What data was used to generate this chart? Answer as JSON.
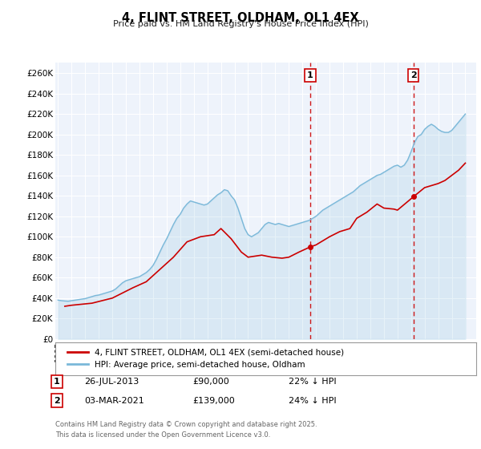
{
  "title": "4, FLINT STREET, OLDHAM, OL1 4EX",
  "subtitle": "Price paid vs. HM Land Registry's House Price Index (HPI)",
  "xlim_start": 1994.8,
  "xlim_end": 2025.8,
  "ylim": [
    0,
    270000
  ],
  "yticks": [
    0,
    20000,
    40000,
    60000,
    80000,
    100000,
    120000,
    140000,
    160000,
    180000,
    200000,
    220000,
    240000,
    260000
  ],
  "ytick_labels": [
    "£0",
    "£20K",
    "£40K",
    "£60K",
    "£80K",
    "£100K",
    "£120K",
    "£140K",
    "£160K",
    "£180K",
    "£200K",
    "£220K",
    "£240K",
    "£260K"
  ],
  "xticks": [
    1995,
    1996,
    1997,
    1998,
    1999,
    2000,
    2001,
    2002,
    2003,
    2004,
    2005,
    2006,
    2007,
    2008,
    2009,
    2010,
    2011,
    2012,
    2013,
    2014,
    2015,
    2016,
    2017,
    2018,
    2019,
    2020,
    2021,
    2022,
    2023,
    2024,
    2025
  ],
  "hpi_color": "#7ab8d9",
  "price_color": "#cc0000",
  "vline1_x": 2013.57,
  "vline2_x": 2021.17,
  "vline_color": "#cc0000",
  "marker1_x": 2013.57,
  "marker1_y": 90000,
  "marker2_x": 2021.17,
  "marker2_y": 139000,
  "label1": "1",
  "label2": "2",
  "legend_price": "4, FLINT STREET, OLDHAM, OL1 4EX (semi-detached house)",
  "legend_hpi": "HPI: Average price, semi-detached house, Oldham",
  "note1_label": "1",
  "note1_date": "26-JUL-2013",
  "note1_price": "£90,000",
  "note1_hpi": "22% ↓ HPI",
  "note2_label": "2",
  "note2_date": "03-MAR-2021",
  "note2_price": "£139,000",
  "note2_hpi": "24% ↓ HPI",
  "footer": "Contains HM Land Registry data © Crown copyright and database right 2025.\nThis data is licensed under the Open Government Licence v3.0.",
  "hpi_data_years": [
    1995.0,
    1995.25,
    1995.5,
    1995.75,
    1996.0,
    1996.25,
    1996.5,
    1996.75,
    1997.0,
    1997.25,
    1997.5,
    1997.75,
    1998.0,
    1998.25,
    1998.5,
    1998.75,
    1999.0,
    1999.25,
    1999.5,
    1999.75,
    2000.0,
    2000.25,
    2000.5,
    2000.75,
    2001.0,
    2001.25,
    2001.5,
    2001.75,
    2002.0,
    2002.25,
    2002.5,
    2002.75,
    2003.0,
    2003.25,
    2003.5,
    2003.75,
    2004.0,
    2004.25,
    2004.5,
    2004.75,
    2005.0,
    2005.25,
    2005.5,
    2005.75,
    2006.0,
    2006.25,
    2006.5,
    2006.75,
    2007.0,
    2007.25,
    2007.5,
    2007.75,
    2008.0,
    2008.25,
    2008.5,
    2008.75,
    2009.0,
    2009.25,
    2009.5,
    2009.75,
    2010.0,
    2010.25,
    2010.5,
    2010.75,
    2011.0,
    2011.25,
    2011.5,
    2011.75,
    2012.0,
    2012.25,
    2012.5,
    2012.75,
    2013.0,
    2013.25,
    2013.5,
    2013.75,
    2014.0,
    2014.25,
    2014.5,
    2014.75,
    2015.0,
    2015.25,
    2015.5,
    2015.75,
    2016.0,
    2016.25,
    2016.5,
    2016.75,
    2017.0,
    2017.25,
    2017.5,
    2017.75,
    2018.0,
    2018.25,
    2018.5,
    2018.75,
    2019.0,
    2019.25,
    2019.5,
    2019.75,
    2020.0,
    2020.25,
    2020.5,
    2020.75,
    2021.0,
    2021.25,
    2021.5,
    2021.75,
    2022.0,
    2022.25,
    2022.5,
    2022.75,
    2023.0,
    2023.25,
    2023.5,
    2023.75,
    2024.0,
    2024.25,
    2024.5,
    2024.75,
    2025.0
  ],
  "hpi_data_values": [
    38000,
    37500,
    37200,
    37000,
    37500,
    38000,
    38500,
    39000,
    39500,
    40500,
    41500,
    42500,
    43000,
    44000,
    45000,
    46000,
    47000,
    49000,
    52000,
    55000,
    57000,
    58000,
    59000,
    60000,
    61000,
    63000,
    65000,
    68000,
    72000,
    78000,
    85000,
    92000,
    98000,
    105000,
    112000,
    118000,
    122000,
    128000,
    132000,
    135000,
    134000,
    133000,
    132000,
    131000,
    132000,
    135000,
    138000,
    141000,
    143000,
    146000,
    145000,
    140000,
    136000,
    128000,
    118000,
    108000,
    102000,
    100000,
    102000,
    104000,
    108000,
    112000,
    114000,
    113000,
    112000,
    113000,
    112000,
    111000,
    110000,
    111000,
    112000,
    113000,
    114000,
    115000,
    116000,
    118000,
    120000,
    123000,
    126000,
    128000,
    130000,
    132000,
    134000,
    136000,
    138000,
    140000,
    142000,
    144000,
    147000,
    150000,
    152000,
    154000,
    156000,
    158000,
    160000,
    161000,
    163000,
    165000,
    167000,
    169000,
    170000,
    168000,
    170000,
    175000,
    183000,
    192000,
    198000,
    200000,
    205000,
    208000,
    210000,
    208000,
    205000,
    203000,
    202000,
    202000,
    204000,
    208000,
    212000,
    216000,
    220000
  ],
  "price_data_years": [
    1995.5,
    1996.0,
    1997.5,
    1999.0,
    2000.5,
    2001.5,
    2002.5,
    2003.5,
    2004.5,
    2005.5,
    2006.5,
    2007.0,
    2007.75,
    2008.5,
    2009.0,
    2010.0,
    2010.75,
    2011.5,
    2012.0,
    2012.75,
    2013.57,
    2014.0,
    2015.0,
    2015.75,
    2016.5,
    2017.0,
    2017.75,
    2018.5,
    2019.0,
    2019.75,
    2020.0,
    2021.17,
    2022.0,
    2022.5,
    2023.0,
    2023.5,
    2024.0,
    2024.5,
    2025.0
  ],
  "price_data_values": [
    32000,
    33000,
    35000,
    40000,
    50000,
    56000,
    68000,
    80000,
    95000,
    100000,
    102000,
    108000,
    98000,
    85000,
    80000,
    82000,
    80000,
    79000,
    80000,
    85000,
    90000,
    92000,
    100000,
    105000,
    108000,
    118000,
    124000,
    132000,
    128000,
    127000,
    126000,
    139000,
    148000,
    150000,
    152000,
    155000,
    160000,
    165000,
    172000
  ]
}
